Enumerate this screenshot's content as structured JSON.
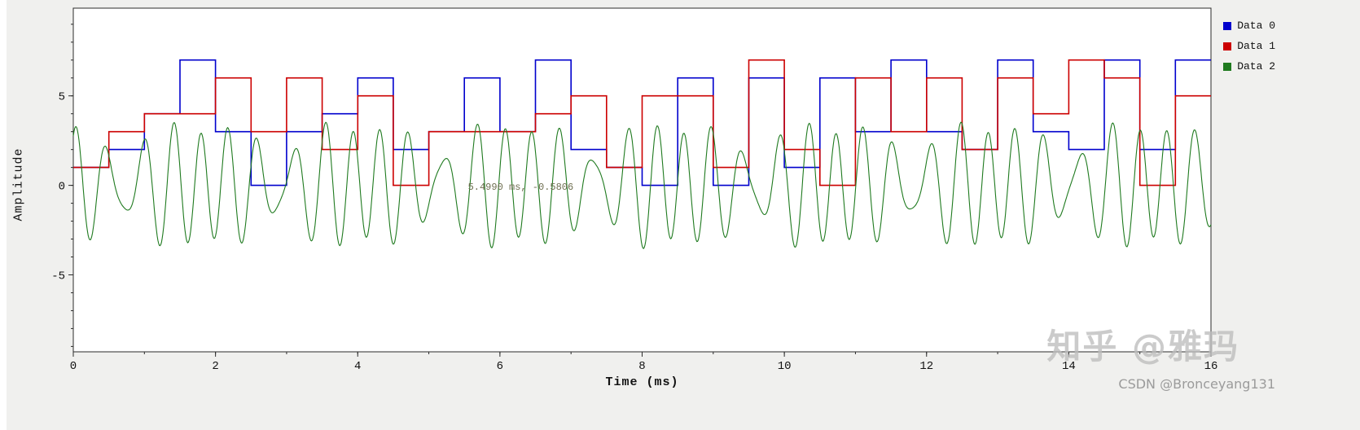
{
  "figure": {
    "background": "#f0f0ee",
    "plot_background": "#ffffff",
    "frame_color": "#2b2b2b"
  },
  "chart_data": {
    "type": "line",
    "title": "",
    "xlabel": "Time (ms)",
    "ylabel": "Amplitude",
    "xlim": [
      0,
      16
    ],
    "ylim": [
      -9.3,
      9.9
    ],
    "x_ticks": [
      0,
      2,
      4,
      6,
      8,
      10,
      12,
      14,
      16
    ],
    "x_minor_step": 1,
    "y_ticks": [
      -5,
      0,
      5
    ],
    "y_minor_step": 1,
    "grid": false,
    "legend_position": "outside-top-right",
    "symbol_period_ms": 0.5,
    "series": [
      {
        "name": "Data 0",
        "color": "#0000cd",
        "style": "step",
        "values": [
          1,
          2,
          4,
          7,
          3,
          0,
          3,
          4,
          6,
          2,
          3,
          6,
          3,
          7,
          2,
          1,
          0,
          6,
          0,
          6,
          1,
          6,
          3,
          7,
          3,
          2,
          7,
          3,
          2,
          7,
          2,
          7
        ]
      },
      {
        "name": "Data 1",
        "color": "#cc0000",
        "style": "step",
        "values": [
          1,
          3,
          4,
          4,
          6,
          3,
          6,
          2,
          5,
          0,
          3,
          3,
          3,
          4,
          5,
          1,
          5,
          5,
          1,
          7,
          2,
          0,
          6,
          3,
          6,
          2,
          6,
          4,
          7,
          6,
          0,
          5
        ]
      },
      {
        "name": "Data 2",
        "color": "#1f7a1f",
        "style": "multitone",
        "sample_step_ms": 0.01,
        "tones": [
          {
            "amp": 2.1,
            "freq_per_ms": 2.35,
            "phase": 0.2
          },
          {
            "amp": 1.7,
            "freq_per_ms": 2.8,
            "phase": 1.4
          },
          {
            "amp": 0.9,
            "freq_per_ms": 1.9,
            "phase": 2.3
          }
        ]
      }
    ],
    "annotation": {
      "label": "5.4990 ms, -0.5806",
      "x_ms": 5.55,
      "y": -0.1,
      "color": "#6e6e50"
    }
  },
  "legend": {
    "items": [
      {
        "label": "Data 0",
        "color": "#0000cd"
      },
      {
        "label": "Data 1",
        "color": "#cc0000"
      },
      {
        "label": "Data 2",
        "color": "#1f7a1f"
      }
    ]
  },
  "watermarks": {
    "zhihu": "知乎 @雅玛",
    "csdn": "CSDN @Bronceyang131"
  }
}
